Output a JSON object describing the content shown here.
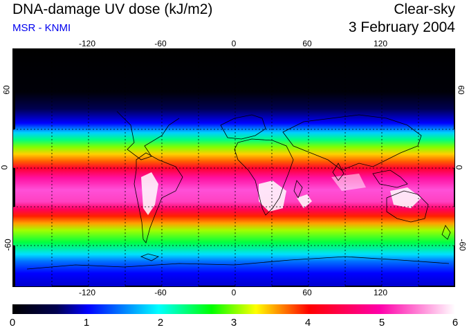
{
  "header": {
    "title": "DNA-damage UV dose (kJ/m2)",
    "subtitle": "MSR - KNMI",
    "condition": "Clear-sky",
    "date": "3 February 2004"
  },
  "map": {
    "lon_ticks": [
      "-120",
      "-60",
      "0",
      "60",
      "120"
    ],
    "lat_ticks_left": [
      "60",
      "0",
      "-60"
    ],
    "lat_ticks_right": [
      "60",
      "0",
      "-60"
    ]
  },
  "colorbar": {
    "labels": [
      "0",
      "1",
      "2",
      "3",
      "4",
      "5",
      "6"
    ],
    "colors": [
      "#000000",
      "#000050",
      "#0000ff",
      "#00ffff",
      "#00ff00",
      "#ffff00",
      "#ff0000",
      "#ff00aa",
      "#ffffff"
    ]
  }
}
